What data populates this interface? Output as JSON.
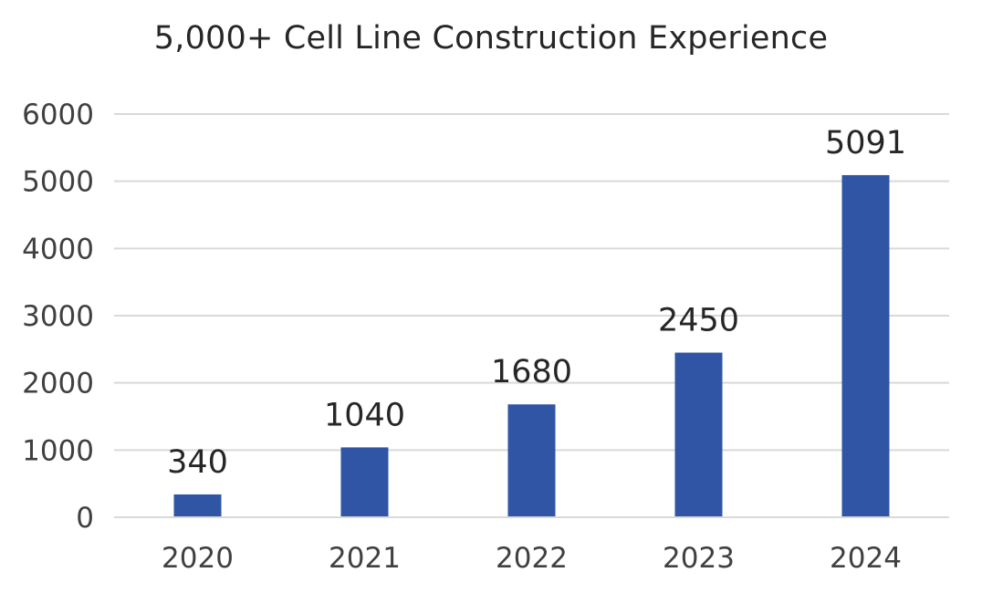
{
  "chart_data": {
    "type": "bar",
    "title": "5,000+ Cell Line Construction Experience",
    "xlabel": "",
    "ylabel": "",
    "categories": [
      "2020",
      "2021",
      "2022",
      "2023",
      "2024"
    ],
    "values": [
      340,
      1040,
      1680,
      2450,
      5091
    ],
    "data_labels": [
      "340",
      "1040",
      "1680",
      "2450",
      "5091"
    ],
    "ylim": [
      0,
      6000
    ],
    "yticks": [
      0,
      1000,
      2000,
      3000,
      4000,
      5000,
      6000
    ],
    "ytick_labels": [
      "0",
      "1000",
      "2000",
      "3000",
      "4000",
      "5000",
      "6000"
    ],
    "grid": true,
    "legend": "none",
    "bar_color": "#2F55A4",
    "grid_color": "#D9D9D9"
  }
}
